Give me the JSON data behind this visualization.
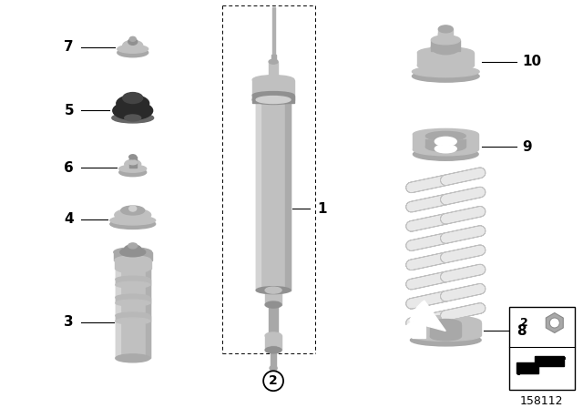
{
  "background_color": "#ffffff",
  "diagram_number": "158112",
  "lc": "#c0c0c0",
  "dc": "#909090",
  "mc": "#a8a8a8",
  "bk": "#2a2a2a",
  "wh": "#ffffff",
  "sp_col": "#e8e8e8",
  "sp_edge": "#c0c0c0"
}
